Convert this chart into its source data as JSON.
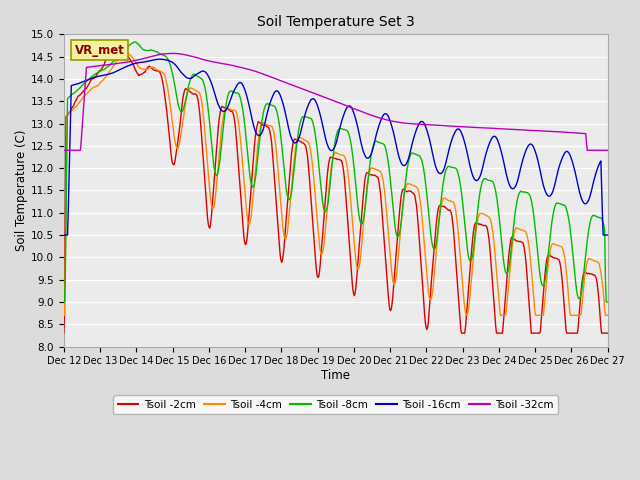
{
  "title": "Soil Temperature Set 3",
  "xlabel": "Time",
  "ylabel": "Soil Temperature (C)",
  "ylim": [
    8.0,
    15.0
  ],
  "yticks": [
    8.0,
    8.5,
    9.0,
    9.5,
    10.0,
    10.5,
    11.0,
    11.5,
    12.0,
    12.5,
    13.0,
    13.5,
    14.0,
    14.5,
    15.0
  ],
  "x_labels": [
    "Dec 12",
    "Dec 13",
    "Dec 14",
    "Dec 15",
    "Dec 16",
    "Dec 17",
    "Dec 18",
    "Dec 19",
    "Dec 20",
    "Dec 21",
    "Dec 22",
    "Dec 23",
    "Dec 24",
    "Dec 25",
    "Dec 26",
    "Dec 27"
  ],
  "colors": {
    "Tsoil_2cm": "#dd0000",
    "Tsoil_4cm": "#ff8800",
    "Tsoil_8cm": "#00bb00",
    "Tsoil_16cm": "#0000cc",
    "Tsoil_32cm": "#bb00bb"
  },
  "legend_labels": [
    "Tsoil -2cm",
    "Tsoil -4cm",
    "Tsoil -8cm",
    "Tsoil -16cm",
    "Tsoil -32cm"
  ],
  "vr_met_label": "VR_met",
  "background_color": "#dcdcdc",
  "plot_bg_color": "#ebebeb"
}
